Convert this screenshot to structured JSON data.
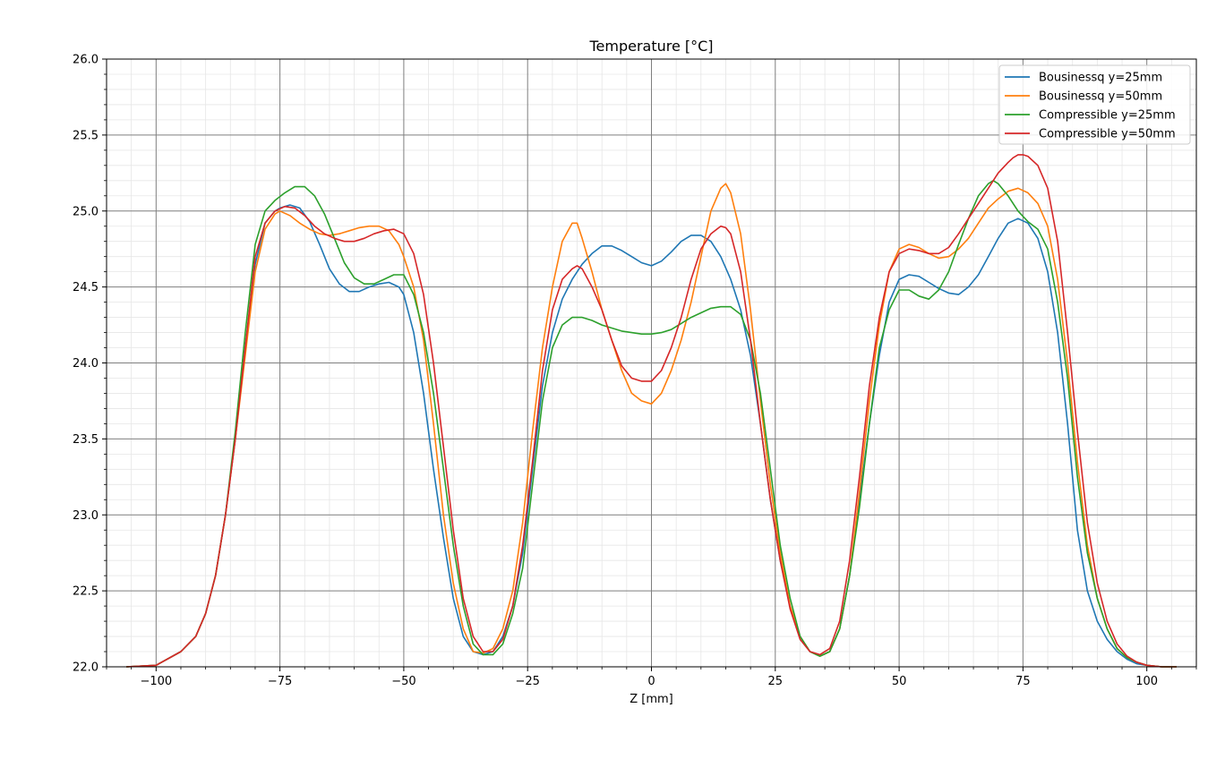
{
  "chart_data": {
    "type": "line",
    "title": "Temperature [°C]",
    "xlabel": "Z [mm]",
    "ylabel": "",
    "xlim": [
      -110,
      110
    ],
    "ylim": [
      22.0,
      26.0
    ],
    "xticks": [
      -100,
      -75,
      -50,
      -25,
      0,
      25,
      50,
      75,
      100
    ],
    "xtick_labels": [
      "−100",
      "−75",
      "−50",
      "−25",
      "0",
      "25",
      "50",
      "75",
      "100"
    ],
    "yticks": [
      22.0,
      22.5,
      23.0,
      23.5,
      24.0,
      24.5,
      25.0,
      25.5,
      26.0
    ],
    "ytick_labels": [
      "22.0",
      "22.5",
      "23.0",
      "23.5",
      "24.0",
      "24.5",
      "25.0",
      "25.5",
      "26.0"
    ],
    "grid": true,
    "minor_grid": true,
    "legend_position": "top-right",
    "series": [
      {
        "name": "Bousinessq y=25mm",
        "color": "#1f77b4",
        "x": [
          -106,
          -100,
          -95,
          -92,
          -90,
          -88,
          -86,
          -84,
          -82,
          -80,
          -78,
          -76,
          -75,
          -73,
          -71,
          -69,
          -67,
          -65,
          -63,
          -61,
          -59,
          -57,
          -55,
          -53,
          -51,
          -50,
          -48,
          -46,
          -44,
          -42,
          -40,
          -38,
          -36,
          -34,
          -32,
          -30,
          -28,
          -26,
          -24,
          -22,
          -20,
          -18,
          -16,
          -14,
          -12,
          -10,
          -8,
          -6,
          -4,
          -2,
          0,
          2,
          4,
          6,
          8,
          10,
          12,
          14,
          16,
          18,
          20,
          22,
          24,
          26,
          28,
          30,
          32,
          34,
          36,
          38,
          40,
          42,
          44,
          46,
          48,
          50,
          52,
          54,
          56,
          58,
          60,
          62,
          64,
          66,
          68,
          70,
          72,
          74,
          76,
          78,
          80,
          82,
          84,
          86,
          88,
          90,
          92,
          94,
          96,
          98,
          100,
          103,
          106
        ],
        "values": [
          22.0,
          22.01,
          22.1,
          22.2,
          22.35,
          22.6,
          23.0,
          23.5,
          24.1,
          24.65,
          24.92,
          25.0,
          25.02,
          25.04,
          25.02,
          24.93,
          24.78,
          24.62,
          24.52,
          24.47,
          24.47,
          24.5,
          24.52,
          24.53,
          24.5,
          24.45,
          24.2,
          23.8,
          23.3,
          22.85,
          22.45,
          22.2,
          22.1,
          22.08,
          22.1,
          22.2,
          22.4,
          22.75,
          23.3,
          23.85,
          24.2,
          24.42,
          24.55,
          24.65,
          24.72,
          24.77,
          24.77,
          24.74,
          24.7,
          24.66,
          24.64,
          24.67,
          24.73,
          24.8,
          24.84,
          24.84,
          24.8,
          24.7,
          24.55,
          24.35,
          24.05,
          23.6,
          23.1,
          22.7,
          22.4,
          22.2,
          22.1,
          22.07,
          22.1,
          22.25,
          22.6,
          23.1,
          23.6,
          24.05,
          24.4,
          24.55,
          24.58,
          24.57,
          24.53,
          24.49,
          24.46,
          24.45,
          24.5,
          24.58,
          24.7,
          24.82,
          24.92,
          24.95,
          24.92,
          24.82,
          24.6,
          24.2,
          23.6,
          22.9,
          22.5,
          22.3,
          22.18,
          22.1,
          22.05,
          22.02,
          22.01,
          22.0,
          22.0
        ]
      },
      {
        "name": "Bousinessq y=50mm",
        "color": "#ff7f0e",
        "x": [
          -106,
          -100,
          -95,
          -92,
          -90,
          -88,
          -86,
          -84,
          -82,
          -80,
          -78,
          -76,
          -75,
          -73,
          -71,
          -69,
          -67,
          -65,
          -63,
          -61,
          -59,
          -57,
          -55,
          -53,
          -51,
          -50,
          -48,
          -46,
          -44,
          -42,
          -40,
          -38,
          -36,
          -34,
          -32,
          -30,
          -28,
          -26,
          -24,
          -22,
          -20,
          -18,
          -16,
          -15,
          -14,
          -12,
          -10,
          -8,
          -6,
          -4,
          -2,
          0,
          2,
          4,
          6,
          8,
          10,
          12,
          14,
          15,
          16,
          18,
          20,
          22,
          24,
          26,
          28,
          30,
          32,
          34,
          36,
          38,
          40,
          42,
          44,
          46,
          48,
          50,
          52,
          54,
          56,
          58,
          60,
          62,
          64,
          66,
          68,
          70,
          72,
          74,
          76,
          78,
          80,
          82,
          84,
          86,
          88,
          90,
          92,
          94,
          96,
          98,
          100,
          103,
          106
        ],
        "values": [
          22.0,
          22.01,
          22.1,
          22.2,
          22.35,
          22.6,
          23.0,
          23.5,
          24.05,
          24.6,
          24.88,
          24.98,
          25.0,
          24.97,
          24.92,
          24.88,
          24.85,
          24.84,
          24.85,
          24.87,
          24.89,
          24.9,
          24.9,
          24.87,
          24.78,
          24.7,
          24.5,
          24.15,
          23.6,
          23.0,
          22.55,
          22.25,
          22.1,
          22.09,
          22.12,
          22.25,
          22.5,
          22.95,
          23.55,
          24.1,
          24.5,
          24.8,
          24.92,
          24.92,
          24.82,
          24.6,
          24.35,
          24.15,
          23.95,
          23.8,
          23.75,
          23.73,
          23.8,
          23.95,
          24.15,
          24.4,
          24.7,
          25.0,
          25.15,
          25.18,
          25.12,
          24.85,
          24.35,
          23.75,
          23.2,
          22.75,
          22.4,
          22.2,
          22.1,
          22.07,
          22.1,
          22.25,
          22.6,
          23.15,
          23.75,
          24.25,
          24.6,
          24.75,
          24.78,
          24.76,
          24.72,
          24.69,
          24.7,
          24.75,
          24.82,
          24.92,
          25.02,
          25.08,
          25.13,
          25.15,
          25.12,
          25.05,
          24.9,
          24.55,
          24.0,
          23.35,
          22.8,
          22.45,
          22.25,
          22.12,
          22.06,
          22.03,
          22.01,
          22.0,
          22.0
        ]
      },
      {
        "name": "Compressible y=25mm",
        "color": "#2ca02c",
        "x": [
          -106,
          -100,
          -95,
          -92,
          -90,
          -88,
          -86,
          -84,
          -82,
          -80,
          -78,
          -76,
          -74,
          -72,
          -70,
          -68,
          -66,
          -64,
          -62,
          -60,
          -58,
          -56,
          -54,
          -52,
          -50,
          -48,
          -46,
          -44,
          -42,
          -40,
          -38,
          -36,
          -34,
          -32,
          -30,
          -28,
          -26,
          -24,
          -22,
          -20,
          -18,
          -16,
          -14,
          -12,
          -10,
          -8,
          -6,
          -4,
          -2,
          0,
          2,
          4,
          6,
          8,
          10,
          12,
          14,
          16,
          18,
          20,
          22,
          24,
          26,
          28,
          30,
          32,
          34,
          36,
          38,
          40,
          42,
          44,
          46,
          48,
          50,
          52,
          54,
          56,
          58,
          60,
          62,
          64,
          66,
          68,
          69,
          70,
          72,
          74,
          76,
          78,
          80,
          82,
          84,
          86,
          88,
          90,
          92,
          94,
          96,
          98,
          100,
          103,
          106
        ],
        "values": [
          22.0,
          22.01,
          22.1,
          22.2,
          22.35,
          22.6,
          23.0,
          23.55,
          24.2,
          24.78,
          25.0,
          25.07,
          25.12,
          25.16,
          25.16,
          25.1,
          24.98,
          24.82,
          24.66,
          24.56,
          24.52,
          24.52,
          24.55,
          24.58,
          24.58,
          24.45,
          24.2,
          23.8,
          23.3,
          22.8,
          22.4,
          22.15,
          22.08,
          22.08,
          22.15,
          22.35,
          22.65,
          23.2,
          23.75,
          24.1,
          24.25,
          24.3,
          24.3,
          24.28,
          24.25,
          24.23,
          24.21,
          24.2,
          24.19,
          24.19,
          24.2,
          24.22,
          24.26,
          24.3,
          24.33,
          24.36,
          24.37,
          24.37,
          24.32,
          24.15,
          23.8,
          23.3,
          22.8,
          22.45,
          22.2,
          22.1,
          22.07,
          22.1,
          22.25,
          22.6,
          23.05,
          23.6,
          24.1,
          24.35,
          24.48,
          24.48,
          24.44,
          24.42,
          24.48,
          24.6,
          24.78,
          24.95,
          25.1,
          25.18,
          25.2,
          25.18,
          25.1,
          25.0,
          24.93,
          24.88,
          24.75,
          24.4,
          23.9,
          23.25,
          22.75,
          22.45,
          22.25,
          22.12,
          22.06,
          22.03,
          22.01,
          22.0,
          22.0
        ]
      },
      {
        "name": "Compressible y=50mm",
        "color": "#d62728",
        "x": [
          -106,
          -100,
          -95,
          -92,
          -90,
          -88,
          -86,
          -84,
          -82,
          -80,
          -78,
          -76,
          -74,
          -72,
          -70,
          -68,
          -66,
          -64,
          -62,
          -60,
          -58,
          -56,
          -54,
          -52,
          -50,
          -48,
          -46,
          -44,
          -42,
          -40,
          -38,
          -36,
          -34,
          -32,
          -30,
          -28,
          -26,
          -24,
          -22,
          -20,
          -18,
          -16,
          -15,
          -14,
          -12,
          -10,
          -8,
          -6,
          -4,
          -2,
          0,
          2,
          4,
          6,
          8,
          10,
          12,
          14,
          15,
          16,
          18,
          20,
          22,
          24,
          26,
          28,
          30,
          32,
          34,
          36,
          38,
          40,
          42,
          44,
          46,
          48,
          50,
          52,
          54,
          56,
          58,
          60,
          62,
          64,
          66,
          68,
          70,
          72,
          73,
          74,
          75,
          76,
          78,
          80,
          82,
          84,
          86,
          88,
          90,
          92,
          94,
          96,
          98,
          100,
          103,
          106
        ],
        "values": [
          22.0,
          22.01,
          22.1,
          22.2,
          22.35,
          22.6,
          23.0,
          23.5,
          24.1,
          24.7,
          24.92,
          25.0,
          25.03,
          25.02,
          24.97,
          24.9,
          24.85,
          24.82,
          24.8,
          24.8,
          24.82,
          24.85,
          24.87,
          24.88,
          24.85,
          24.72,
          24.45,
          24.0,
          23.45,
          22.9,
          22.45,
          22.2,
          22.1,
          22.1,
          22.18,
          22.4,
          22.8,
          23.35,
          23.95,
          24.35,
          24.55,
          24.62,
          24.64,
          24.62,
          24.5,
          24.35,
          24.15,
          23.98,
          23.9,
          23.88,
          23.88,
          23.95,
          24.1,
          24.3,
          24.55,
          24.75,
          24.85,
          24.9,
          24.89,
          24.85,
          24.6,
          24.15,
          23.6,
          23.1,
          22.7,
          22.38,
          22.18,
          22.1,
          22.08,
          22.12,
          22.3,
          22.7,
          23.25,
          23.85,
          24.3,
          24.6,
          24.72,
          24.75,
          24.74,
          24.72,
          24.72,
          24.76,
          24.85,
          24.95,
          25.05,
          25.15,
          25.25,
          25.32,
          25.35,
          25.37,
          25.37,
          25.36,
          25.3,
          25.15,
          24.8,
          24.2,
          23.55,
          22.95,
          22.55,
          22.3,
          22.15,
          22.07,
          22.03,
          22.01,
          22.0,
          22.0
        ]
      }
    ]
  }
}
